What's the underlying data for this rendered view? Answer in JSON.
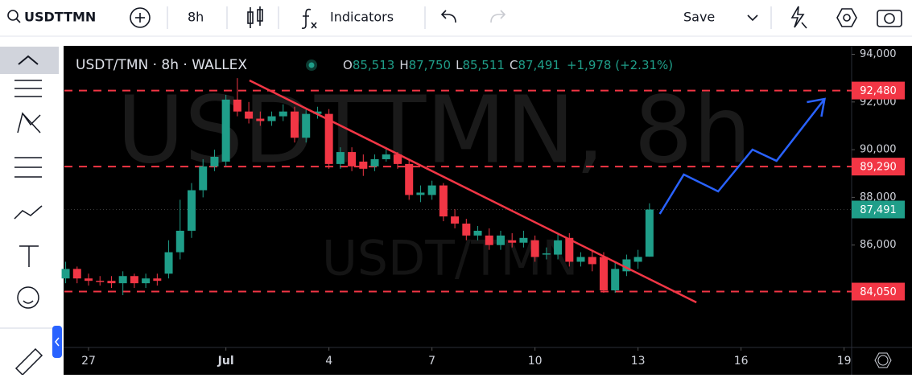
{
  "toolbar": {
    "symbol": "USDTTMN",
    "interval": "8h",
    "indicators": "Indicators",
    "save": "Save"
  },
  "chart_data": {
    "type": "candlestick",
    "legend": {
      "title": "USDT/TMN · 8h · WALLEX",
      "o_label": "O",
      "o": "85,513",
      "h_label": "H",
      "h": "87,750",
      "l_label": "L",
      "l": "85,511",
      "c_label": "C",
      "c": "87,491",
      "change": "+1,978 (+2.31%)"
    },
    "watermark": "USDTTMN, 8h",
    "watermark_sub": "USDT/TMN",
    "x": [
      -2,
      -1,
      0,
      1,
      2,
      3,
      4,
      5,
      6,
      7,
      8,
      9,
      10,
      11,
      12,
      13,
      14,
      15,
      16,
      17,
      18,
      19,
      20,
      21,
      22,
      23,
      24,
      25,
      26,
      27,
      28,
      29,
      30,
      31,
      32,
      33,
      34,
      35,
      36,
      37,
      38,
      39,
      40,
      41,
      42,
      43,
      44,
      45,
      46,
      47,
      48,
      49
    ],
    "open": [
      84600,
      85000,
      84600,
      84500,
      84500,
      84400,
      84700,
      84400,
      84600,
      84800,
      85700,
      86600,
      88300,
      89300,
      89500,
      92100,
      91600,
      91300,
      91200,
      91400,
      91600,
      90500,
      91500,
      91500,
      89400,
      89900,
      89500,
      89300,
      89600,
      89800,
      89400,
      88100,
      88100,
      88500,
      87200,
      86900,
      86400,
      86400,
      86000,
      86200,
      86100,
      86200,
      85600,
      85600,
      86300,
      85300,
      85500,
      85500,
      84100,
      84900,
      85300,
      85513
    ],
    "high": [
      85300,
      85100,
      84800,
      84700,
      84700,
      84900,
      84800,
      84800,
      84800,
      86200,
      87900,
      88600,
      89600,
      90000,
      92300,
      93000,
      92000,
      91600,
      91600,
      91900,
      91800,
      91700,
      91800,
      91700,
      90100,
      90100,
      89800,
      89800,
      90100,
      89900,
      89600,
      88500,
      88700,
      88600,
      87500,
      87100,
      86800,
      86700,
      86600,
      86500,
      86600,
      86400,
      85900,
      86500,
      86500,
      85700,
      85800,
      85700,
      85300,
      85600,
      85800,
      87750
    ],
    "low": [
      84400,
      84400,
      84300,
      84300,
      84200,
      83900,
      84200,
      84200,
      84300,
      84600,
      85400,
      86300,
      88000,
      89100,
      89300,
      91400,
      91100,
      91000,
      91000,
      91200,
      90300,
      90300,
      91300,
      89200,
      89200,
      89100,
      88900,
      89100,
      89500,
      89200,
      87900,
      87800,
      87900,
      87000,
      86700,
      86200,
      86200,
      85800,
      85800,
      85900,
      85900,
      85300,
      85400,
      85400,
      85100,
      85100,
      84900,
      84000,
      84000,
      84700,
      85000,
      85511
    ],
    "close": [
      85000,
      84600,
      84500,
      84450,
      84400,
      84700,
      84400,
      84600,
      84500,
      85700,
      86600,
      88300,
      89300,
      89700,
      92100,
      91600,
      91300,
      91200,
      91400,
      91600,
      90500,
      91500,
      91600,
      89400,
      89900,
      89300,
      89200,
      89600,
      89800,
      89400,
      88100,
      88200,
      88500,
      87200,
      86900,
      86400,
      86600,
      86000,
      86400,
      86100,
      86300,
      85500,
      85650,
      86200,
      85300,
      85500,
      85200,
      84100,
      85000,
      85400,
      85500,
      87491
    ],
    "up_color": "#1f9e89",
    "down_color": "#f23645",
    "xlim": [
      -2.11,
      66.66
    ],
    "ylim": [
      81707,
      94354
    ],
    "xticks": [
      {
        "value": 0,
        "label": "27"
      },
      {
        "value": 12,
        "label": "Jul"
      },
      {
        "value": 21,
        "label": "4"
      },
      {
        "value": 30,
        "label": "7"
      },
      {
        "value": 39,
        "label": "10"
      },
      {
        "value": 48,
        "label": "13"
      },
      {
        "value": 57,
        "label": "16"
      },
      {
        "value": 66,
        "label": "19"
      }
    ],
    "yticks": [
      {
        "value": 86000,
        "label": "86,000"
      },
      {
        "value": 88000,
        "label": "88,000"
      },
      {
        "value": 90000,
        "label": "90,000"
      },
      {
        "value": 92000,
        "label": "92,000"
      },
      {
        "value": 94000,
        "label": "94,000"
      }
    ],
    "levels": [
      {
        "value": 92480,
        "label": "92,480"
      },
      {
        "value": 89290,
        "label": "89,290"
      },
      {
        "value": 84050,
        "label": "84,050"
      }
    ],
    "level_color": "#f23645",
    "last_price": {
      "value": 87491,
      "label": "87,491"
    },
    "trendline": {
      "x": [
        14.06,
        53.1
      ],
      "y": [
        92904,
        83595
      ],
      "color": "#f23645"
    },
    "projection": {
      "x": [
        49.9,
        52.0,
        55.0,
        58.0,
        60.1,
        64.3
      ],
      "y": [
        87305,
        88958,
        88250,
        90004,
        89531,
        92128
      ],
      "color": "#2962ff"
    }
  }
}
